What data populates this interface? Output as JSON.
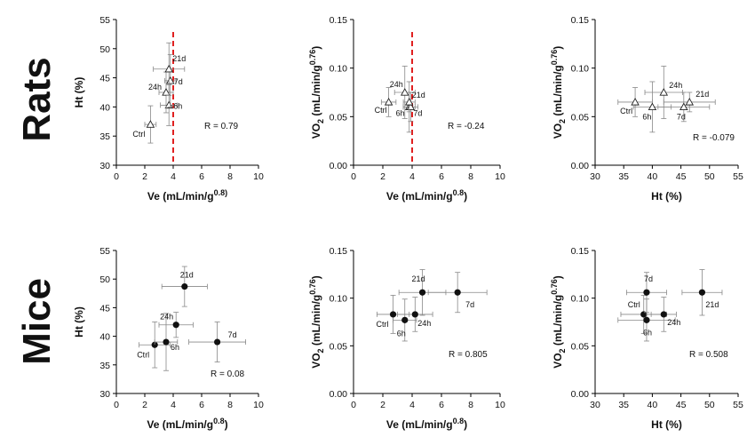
{
  "rows": [
    {
      "label": "Rats",
      "marker": "triangle"
    },
    {
      "label": "Mice",
      "marker": "circle"
    }
  ],
  "chart_data": [
    {
      "type": "scatter",
      "row": "Rats",
      "xlabel": "Ve (mL/min/g",
      "xlabel_sup": "0.8)",
      "xlabel_after": "",
      "ylabel": "Ht (%)",
      "ylabel_sup": "",
      "ylabel_after": "",
      "xlim": [
        0,
        10
      ],
      "xticks": [
        "0",
        "2",
        "4",
        "6",
        "8",
        "10"
      ],
      "ylim": [
        30,
        55
      ],
      "yticks": [
        "30",
        "35",
        "40",
        "45",
        "50",
        "55"
      ],
      "vline": 4.0,
      "r_text": "R = 0.79",
      "points": [
        {
          "label": "Ctrl",
          "x": 2.4,
          "y": 37.0,
          "xerr": 0.4,
          "yerr": 3.2
        },
        {
          "label": "6h",
          "x": 3.7,
          "y": 40.3,
          "xerr": 0.6,
          "yerr": 3.5
        },
        {
          "label": "24h",
          "x": 3.5,
          "y": 42.5,
          "xerr": 0.5,
          "yerr": 3.5
        },
        {
          "label": "7d",
          "x": 3.8,
          "y": 44.5,
          "xerr": 0.4,
          "yerr": 4.5
        },
        {
          "label": "21d",
          "x": 3.7,
          "y": 46.5,
          "xerr": 1.1,
          "yerr": 4.5
        }
      ]
    },
    {
      "type": "scatter",
      "row": "Rats",
      "xlabel": "Ve (mL/min/g",
      "xlabel_sup": "0.8",
      "xlabel_after": ")",
      "ylabel": "VO",
      "ylabel_sub": "2",
      "ylabel_mid": " (mL/min/g",
      "ylabel_sup": "0.76",
      "ylabel_after": ")",
      "xlim": [
        0,
        10
      ],
      "xticks": [
        "0",
        "2",
        "4",
        "6",
        "8",
        "10"
      ],
      "ylim": [
        0,
        0.15
      ],
      "yticks": [
        "0.00",
        "0.05",
        "0.10",
        "0.15"
      ],
      "vline": 4.0,
      "r_text": "R = -0.24",
      "points": [
        {
          "label": "Ctrl",
          "x": 2.4,
          "y": 0.065,
          "xerr": 0.5,
          "yerr": 0.015
        },
        {
          "label": "6h",
          "x": 3.8,
          "y": 0.06,
          "xerr": 0.4,
          "yerr": 0.026
        },
        {
          "label": "24h",
          "x": 3.5,
          "y": 0.075,
          "xerr": 0.7,
          "yerr": 0.027
        },
        {
          "label": "7d",
          "x": 3.9,
          "y": 0.06,
          "xerr": 0.5,
          "yerr": 0.015
        },
        {
          "label": "21d",
          "x": 3.8,
          "y": 0.065,
          "xerr": 0.4,
          "yerr": 0.01
        }
      ]
    },
    {
      "type": "scatter",
      "row": "Rats",
      "xlabel": "Ht (%)",
      "xlabel_sup": "",
      "xlabel_after": "",
      "ylabel": "VO",
      "ylabel_sub": "2",
      "ylabel_mid": " (mL/min/g",
      "ylabel_sup": "0.76",
      "ylabel_after": ")",
      "xlim": [
        30,
        55
      ],
      "xticks": [
        "30",
        "35",
        "40",
        "45",
        "50",
        "55"
      ],
      "ylim": [
        0,
        0.15
      ],
      "yticks": [
        "0.00",
        "0.05",
        "0.10",
        "0.15"
      ],
      "vline": null,
      "r_text": "R = -0.079",
      "points": [
        {
          "label": "Ctrl",
          "x": 37.0,
          "y": 0.065,
          "xerr": 3.0,
          "yerr": 0.015
        },
        {
          "label": "6h",
          "x": 40.0,
          "y": 0.06,
          "xerr": 3.3,
          "yerr": 0.026
        },
        {
          "label": "24h",
          "x": 42.0,
          "y": 0.075,
          "xerr": 3.3,
          "yerr": 0.027
        },
        {
          "label": "7d",
          "x": 45.5,
          "y": 0.06,
          "xerr": 4.5,
          "yerr": 0.015
        },
        {
          "label": "21d",
          "x": 46.5,
          "y": 0.065,
          "xerr": 4.5,
          "yerr": 0.01
        }
      ]
    },
    {
      "type": "scatter",
      "row": "Mice",
      "xlabel": "Ve (mL/min/g",
      "xlabel_sup": "0.8",
      "xlabel_after": ")",
      "ylabel": "Ht (%)",
      "ylabel_sup": "",
      "ylabel_after": "",
      "xlim": [
        0,
        10
      ],
      "xticks": [
        "0",
        "2",
        "4",
        "6",
        "8",
        "10"
      ],
      "ylim": [
        30,
        55
      ],
      "yticks": [
        "30",
        "35",
        "40",
        "45",
        "50",
        "55"
      ],
      "vline": null,
      "r_text": "R = 0.08",
      "points": [
        {
          "label": "Ctrl",
          "x": 2.7,
          "y": 38.5,
          "xerr": 1.1,
          "yerr": 4.0
        },
        {
          "label": "6h",
          "x": 3.5,
          "y": 39.0,
          "xerr": 0.8,
          "yerr": 5.0
        },
        {
          "label": "24h",
          "x": 4.2,
          "y": 42.0,
          "xerr": 1.2,
          "yerr": 2.2
        },
        {
          "label": "21d",
          "x": 4.8,
          "y": 48.7,
          "xerr": 1.6,
          "yerr": 3.5
        },
        {
          "label": "7d",
          "x": 7.1,
          "y": 39.0,
          "xerr": 2.0,
          "yerr": 3.5
        }
      ]
    },
    {
      "type": "scatter",
      "row": "Mice",
      "xlabel": "Ve (mL/min/g",
      "xlabel_sup": "0.8",
      "xlabel_after": ")",
      "ylabel": "VO",
      "ylabel_sub": "2",
      "ylabel_mid": " (mL/min/g",
      "ylabel_sup": "0.76",
      "ylabel_after": ")",
      "xlim": [
        0,
        10
      ],
      "xticks": [
        "0",
        "2",
        "4",
        "6",
        "8",
        "10"
      ],
      "ylim": [
        0,
        0.15
      ],
      "yticks": [
        "0.00",
        "0.05",
        "0.10",
        "0.15"
      ],
      "vline": null,
      "r_text": "R = 0.805",
      "points": [
        {
          "label": "Ctrl",
          "x": 2.7,
          "y": 0.083,
          "xerr": 1.1,
          "yerr": 0.02
        },
        {
          "label": "6h",
          "x": 3.5,
          "y": 0.077,
          "xerr": 0.8,
          "yerr": 0.022
        },
        {
          "label": "24h",
          "x": 4.2,
          "y": 0.083,
          "xerr": 1.2,
          "yerr": 0.018
        },
        {
          "label": "21d",
          "x": 4.7,
          "y": 0.106,
          "xerr": 1.6,
          "yerr": 0.024
        },
        {
          "label": "7d",
          "x": 7.1,
          "y": 0.106,
          "xerr": 2.0,
          "yerr": 0.021
        }
      ]
    },
    {
      "type": "scatter",
      "row": "Mice",
      "xlabel": "Ht (%)",
      "xlabel_sup": "",
      "xlabel_after": "",
      "ylabel": "VO",
      "ylabel_sub": "2",
      "ylabel_mid": " (mL/min/g",
      "ylabel_sup": "0.76",
      "ylabel_after": ")",
      "xlim": [
        30,
        55
      ],
      "xticks": [
        "30",
        "35",
        "40",
        "45",
        "50",
        "55"
      ],
      "ylim": [
        0,
        0.15
      ],
      "yticks": [
        "0.00",
        "0.05",
        "0.10",
        "0.15"
      ],
      "vline": null,
      "r_text": "R = 0.508",
      "points": [
        {
          "label": "Ctrl",
          "x": 38.5,
          "y": 0.083,
          "xerr": 4.0,
          "yerr": 0.02
        },
        {
          "label": "6h",
          "x": 39.0,
          "y": 0.077,
          "xerr": 5.0,
          "yerr": 0.022
        },
        {
          "label": "24h",
          "x": 42.0,
          "y": 0.083,
          "xerr": 2.2,
          "yerr": 0.018
        },
        {
          "label": "7d",
          "x": 39.0,
          "y": 0.106,
          "xerr": 3.5,
          "yerr": 0.021
        },
        {
          "label": "21d",
          "x": 48.7,
          "y": 0.106,
          "xerr": 3.5,
          "yerr": 0.024
        }
      ]
    }
  ]
}
